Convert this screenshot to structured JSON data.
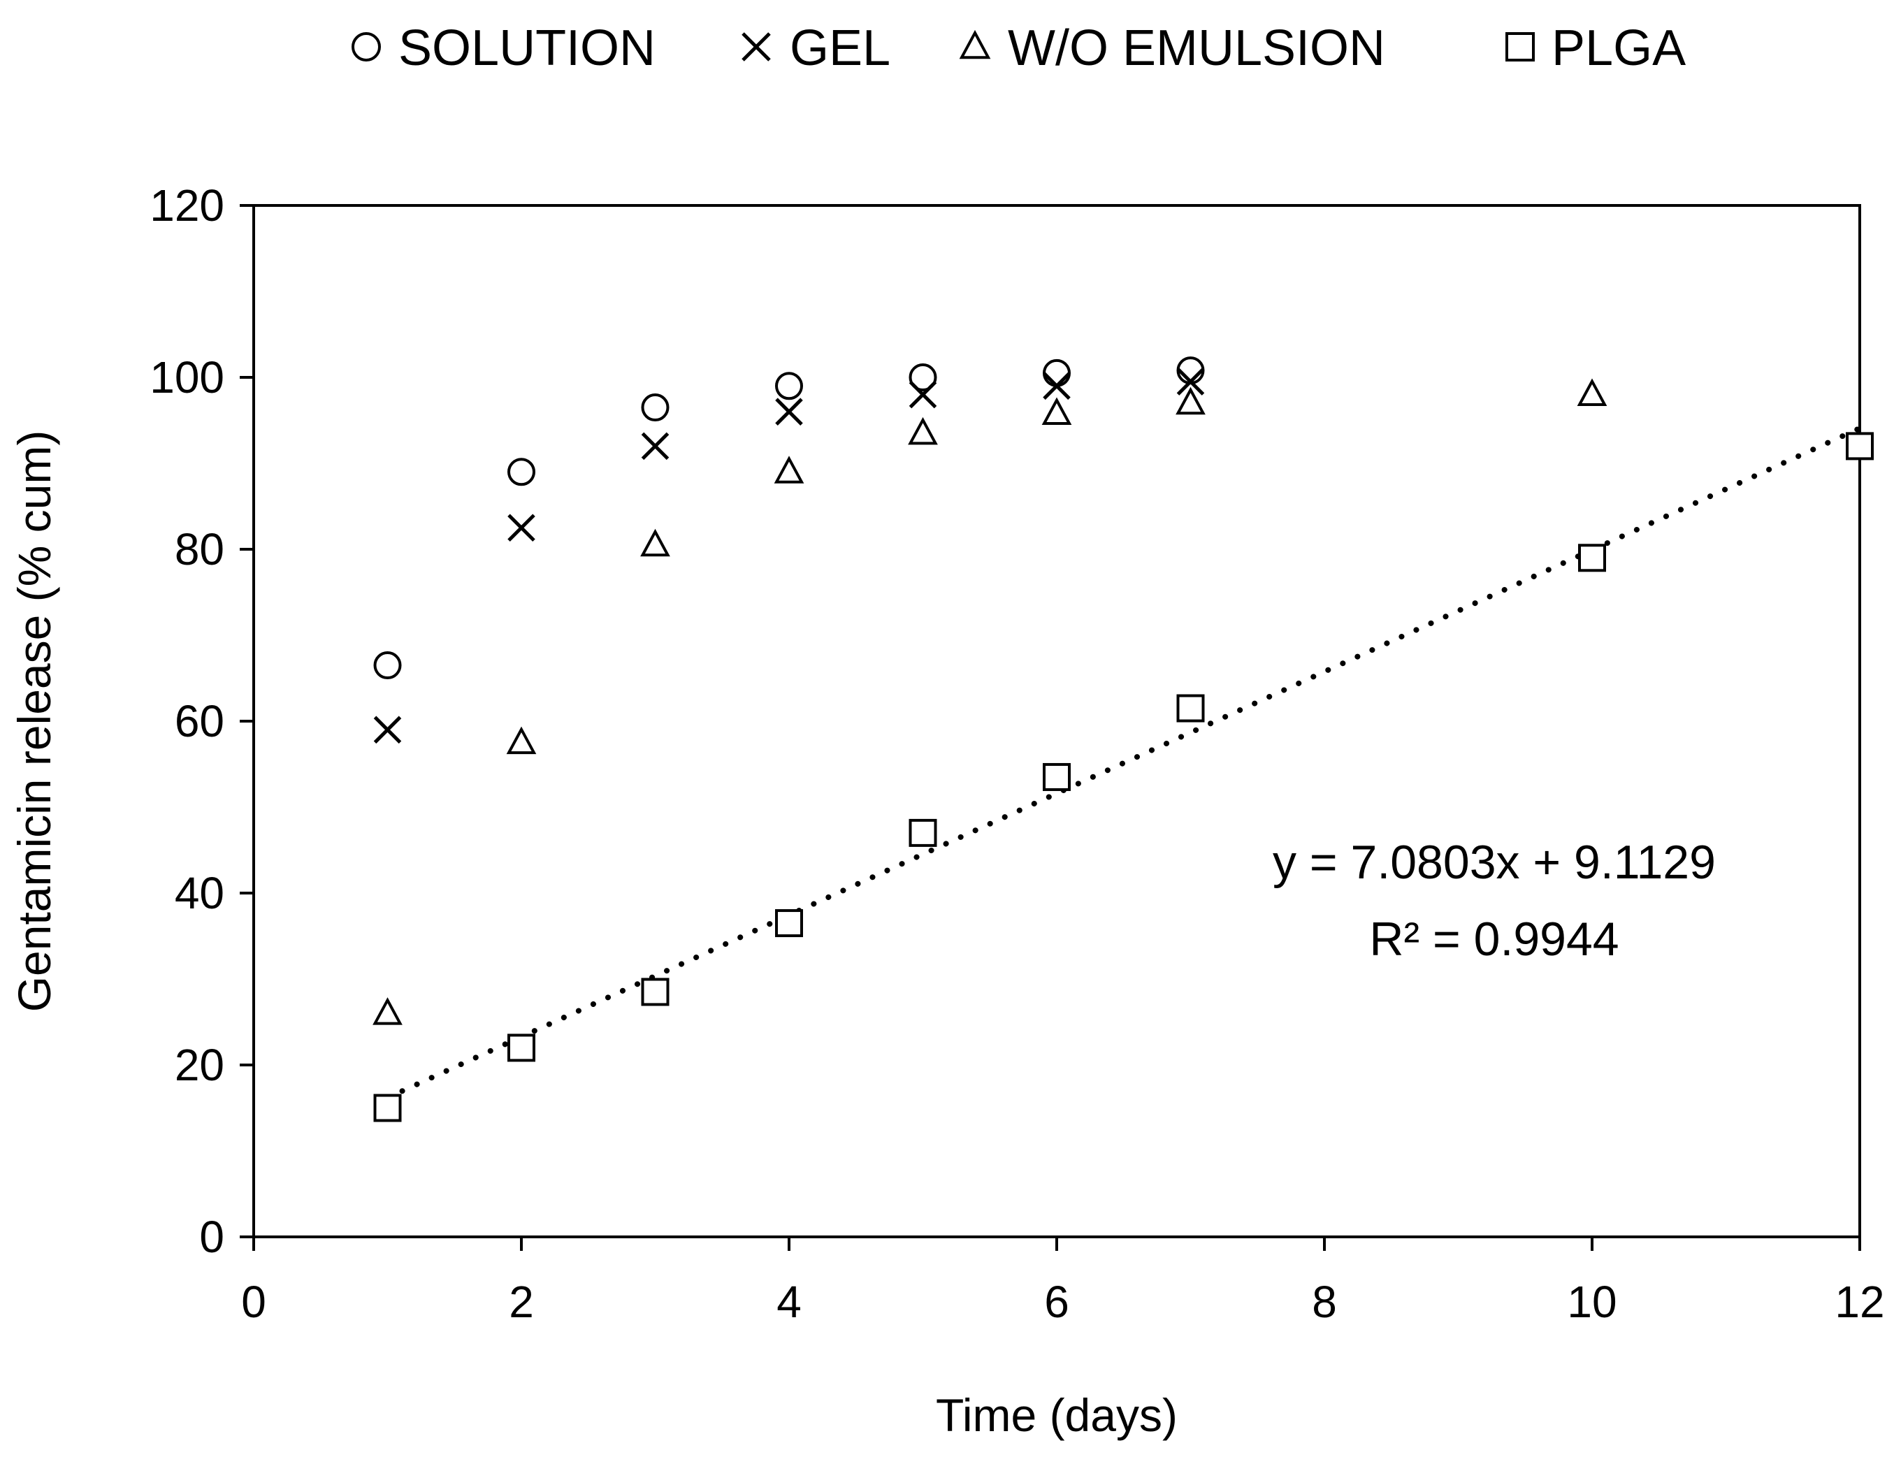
{
  "chart_data": {
    "type": "scatter",
    "title": "",
    "xlabel": "Time (days)",
    "ylabel": "Gentamicin release  (% cum)",
    "xlim": [
      0,
      12
    ],
    "ylim": [
      0,
      120
    ],
    "xticks": [
      0,
      2,
      4,
      6,
      8,
      10,
      12
    ],
    "yticks": [
      0,
      20,
      40,
      60,
      80,
      100,
      120
    ],
    "grid": false,
    "legend_position": "top",
    "series": [
      {
        "name": "SOLUTION",
        "marker": "circle",
        "x": [
          1,
          2,
          3,
          4,
          5,
          6,
          7
        ],
        "y": [
          66.5,
          89,
          96.5,
          99,
          100,
          100.5,
          100.8
        ]
      },
      {
        "name": "GEL",
        "marker": "x",
        "x": [
          1,
          2,
          3,
          4,
          5,
          6,
          7
        ],
        "y": [
          59,
          82.5,
          92,
          96,
          98,
          99,
          99.5
        ]
      },
      {
        "name": "W/O EMULSION",
        "marker": "triangle",
        "x": [
          1,
          2,
          3,
          4,
          5,
          6,
          7,
          10
        ],
        "y": [
          26,
          57.5,
          80.5,
          89,
          93.5,
          95.8,
          97,
          98
        ]
      },
      {
        "name": "PLGA",
        "marker": "square",
        "x": [
          1,
          2,
          3,
          4,
          5,
          6,
          7,
          10,
          12
        ],
        "y": [
          15,
          22,
          28.5,
          36.5,
          47,
          53.5,
          61.5,
          79,
          92
        ]
      }
    ],
    "trendline": {
      "series": "PLGA",
      "style": "dotted",
      "slope": 7.0803,
      "intercept": 9.1129,
      "x_range": [
        1,
        12
      ],
      "equation_label": "y = 7.0803x + 9.1129",
      "r2_label": "R² = 0.9944"
    }
  }
}
